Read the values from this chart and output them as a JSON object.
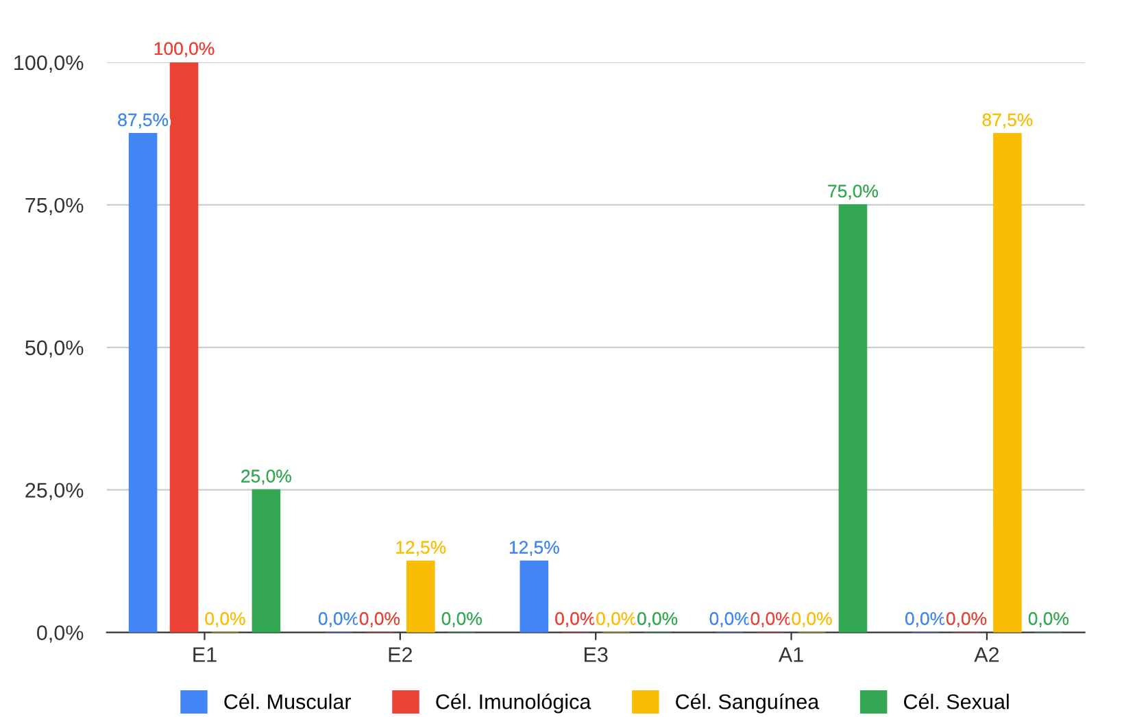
{
  "chart_data": {
    "type": "bar",
    "categories": [
      "E1",
      "E2",
      "E3",
      "A1",
      "A2"
    ],
    "series": [
      {
        "name": "Cél. Muscular",
        "color": "#4285f4",
        "values": [
          87.5,
          0,
          12.5,
          0,
          0
        ],
        "value_labels": [
          "87,5%",
          "0,0%",
          "12,5%",
          "0,0%",
          "0,0%"
        ]
      },
      {
        "name": "Cél. Imunológica",
        "color": "#ea4335",
        "values": [
          100,
          0,
          0,
          0,
          0
        ],
        "value_labels": [
          "100,0%",
          "0,0%",
          "0,0%",
          "0,0%",
          "0,0%"
        ]
      },
      {
        "name": "Cél. Sanguínea",
        "color": "#fbbc04",
        "values": [
          0,
          12.5,
          0,
          0,
          87.5
        ],
        "value_labels": [
          "0,0%",
          "12,5%",
          "0,0%",
          "0,0%",
          "87,5%"
        ]
      },
      {
        "name": "Cél. Sexual",
        "color": "#34a853",
        "values": [
          25,
          0,
          0,
          75,
          0
        ],
        "value_labels": [
          "25,0%",
          "0,0%",
          "0,0%",
          "75,0%",
          "0,0%"
        ]
      }
    ],
    "ylim": [
      0,
      100
    ],
    "yticks": [
      {
        "value": 0,
        "label": "0,0%"
      },
      {
        "value": 25,
        "label": "25,0%"
      },
      {
        "value": 50,
        "label": "50,0%"
      },
      {
        "value": 75,
        "label": "75,0%"
      },
      {
        "value": 100,
        "label": "100,0%"
      }
    ],
    "grid": "y",
    "legend": "bottom"
  }
}
